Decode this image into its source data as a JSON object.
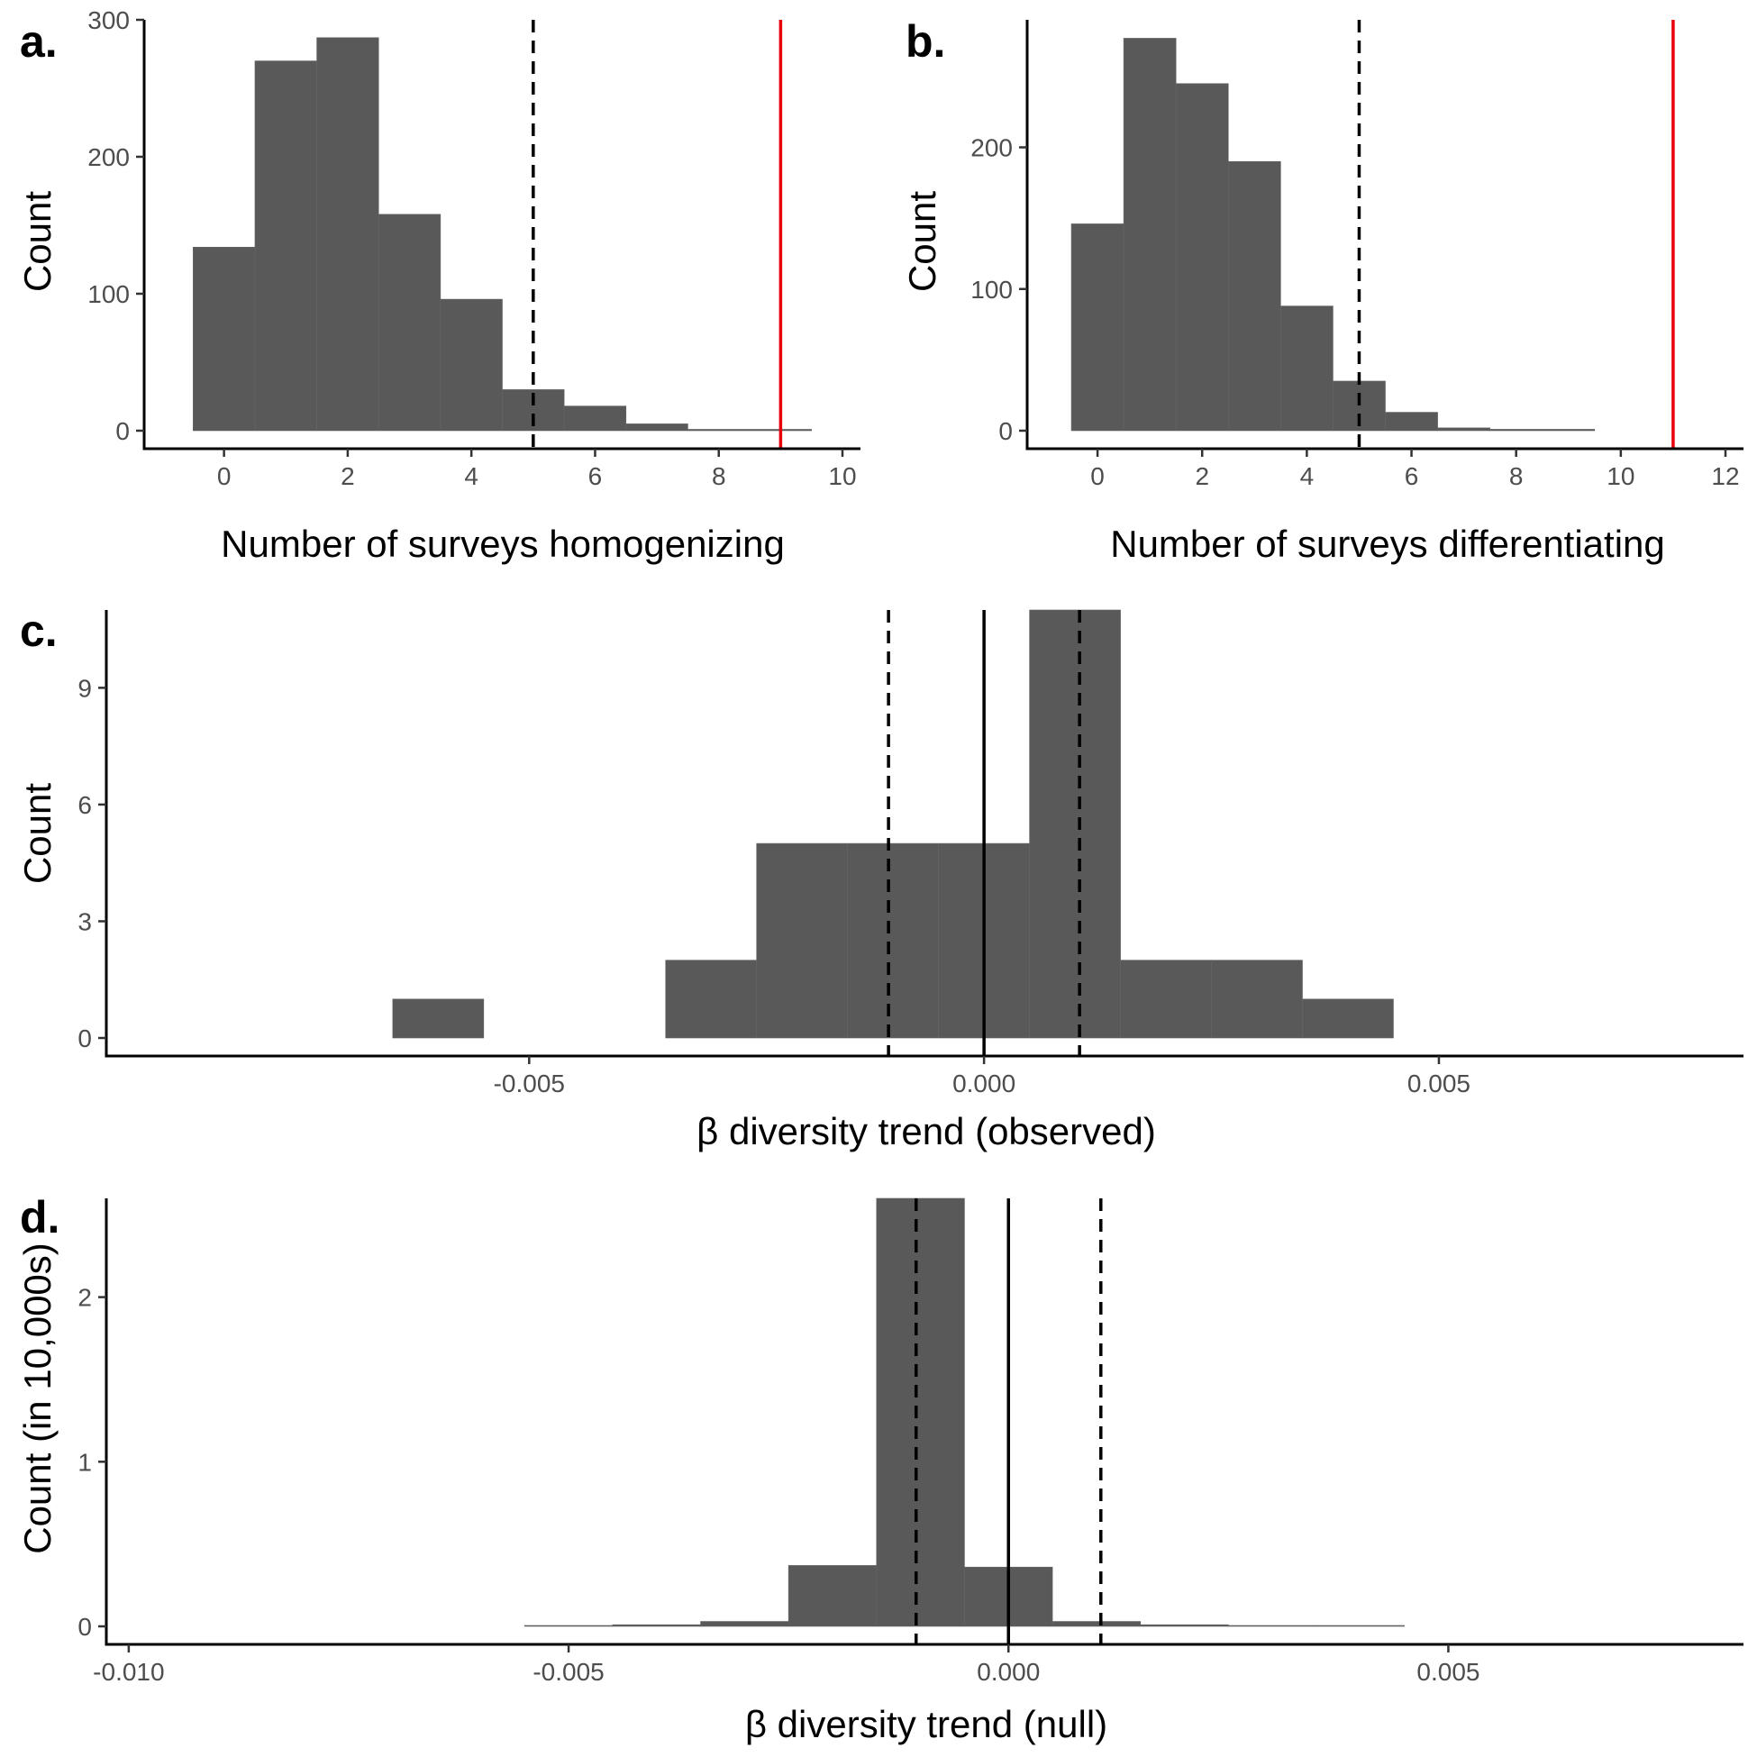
{
  "colors": {
    "bar": "#595959",
    "bar_edge": "#666666",
    "red_line": "#e8000b",
    "ref_line": "#000000"
  },
  "chart_data": [
    {
      "type": "bar",
      "panel_label": "a.",
      "xlabel": "Number of surveys homogenizing",
      "ylabel": "Count",
      "bin_width": 1,
      "bins": [
        0,
        1,
        2,
        3,
        4,
        5,
        6,
        7,
        8,
        9
      ],
      "values": [
        134,
        270,
        287,
        158,
        96,
        30,
        18,
        5,
        1,
        1
      ],
      "xlim": [
        -1,
        10
      ],
      "ylim": [
        0,
        300
      ],
      "xticks": [
        0,
        2,
        4,
        6,
        8,
        10
      ],
      "yticks": [
        0,
        100,
        200,
        300
      ],
      "vlines": [
        {
          "x": 5,
          "style": "dashed",
          "color": "#000000"
        },
        {
          "x": 9,
          "style": "solid",
          "color": "#e8000b"
        }
      ]
    },
    {
      "type": "bar",
      "panel_label": "b.",
      "xlabel": "Number of surveys differentiating",
      "ylabel": "Count",
      "bin_width": 1,
      "bins": [
        0,
        1,
        2,
        3,
        4,
        5,
        6,
        7,
        8,
        9
      ],
      "values": [
        146,
        277,
        245,
        190,
        88,
        35,
        13,
        2,
        1,
        1
      ],
      "xlim": [
        -1,
        12
      ],
      "ylim": [
        0,
        290
      ],
      "xticks": [
        0,
        2,
        4,
        6,
        8,
        10,
        12
      ],
      "yticks": [
        0,
        100,
        200
      ],
      "vlines": [
        {
          "x": 5,
          "style": "dashed",
          "color": "#000000"
        },
        {
          "x": 11,
          "style": "solid",
          "color": "#e8000b"
        }
      ]
    },
    {
      "type": "bar",
      "panel_label": "c.",
      "xlabel": "β diversity trend (observed)",
      "ylabel": "Count",
      "bin_width": 0.001,
      "bins": [
        -0.006,
        -0.005,
        -0.004,
        -0.003,
        -0.002,
        -0.001,
        0.0,
        0.001,
        0.002,
        0.003,
        0.004
      ],
      "values": [
        1,
        0,
        0,
        2,
        5,
        5,
        5,
        11,
        2,
        2,
        1
      ],
      "xlim": [
        -0.00945,
        0.00815
      ],
      "ylim": [
        0,
        11
      ],
      "xticks": [
        -0.005,
        0.0,
        0.005
      ],
      "xtick_labels": [
        "-0.005",
        "0.000",
        "0.005"
      ],
      "yticks": [
        0,
        3,
        6,
        9
      ],
      "vlines": [
        {
          "x": -0.00105,
          "style": "dashed",
          "color": "#000000"
        },
        {
          "x": 0,
          "style": "solid",
          "color": "#000000"
        },
        {
          "x": 0.00105,
          "style": "dashed",
          "color": "#000000"
        }
      ]
    },
    {
      "type": "bar",
      "panel_label": "d.",
      "xlabel": "β diversity trend (null)",
      "ylabel": "Count (in 10,000s)",
      "bin_width": 0.001,
      "bins": [
        -0.005,
        -0.004,
        -0.003,
        -0.002,
        -0.001,
        0.0,
        0.001,
        0.002,
        0.003,
        0.004
      ],
      "values": [
        0.002,
        0.01,
        0.03,
        0.37,
        2.6,
        0.36,
        0.03,
        0.01,
        0.003,
        0.001
      ],
      "xlim": [
        -0.01005,
        0.00815
      ],
      "ylim": [
        0,
        2.6
      ],
      "xticks": [
        -0.01,
        -0.005,
        0.0,
        0.005
      ],
      "xtick_labels": [
        "-0.010",
        "-0.005",
        "0.000",
        "0.005"
      ],
      "yticks": [
        0,
        1,
        2
      ],
      "vlines": [
        {
          "x": -0.00105,
          "style": "dashed",
          "color": "#000000"
        },
        {
          "x": 0,
          "style": "solid",
          "color": "#000000"
        },
        {
          "x": 0.00105,
          "style": "dashed",
          "color": "#000000"
        }
      ]
    }
  ]
}
